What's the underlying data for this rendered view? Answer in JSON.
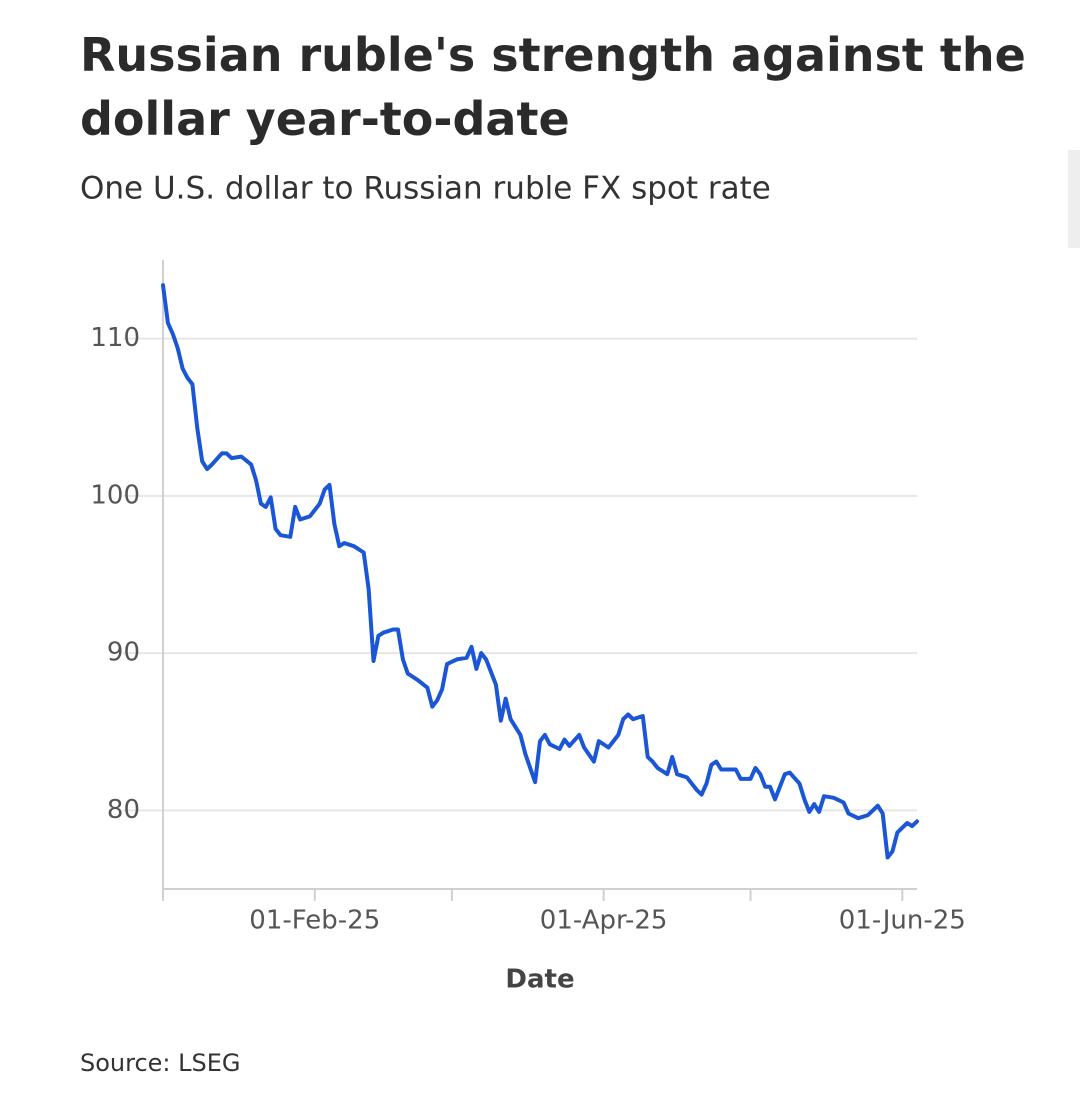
{
  "chart_data": {
    "type": "line",
    "title": "Russian ruble's strength against the dollar year-to-date",
    "subtitle": "One U.S. dollar to Russian ruble FX spot rate",
    "x_label": "Date",
    "source": "Source: LSEG",
    "grid": true,
    "series": [
      {
        "color": "#1a56d6",
        "x": [
          "2025-01-01",
          "2025-01-02",
          "2025-01-03",
          "2025-01-04",
          "2025-01-05",
          "2025-01-06",
          "2025-01-07",
          "2025-01-08",
          "2025-01-09",
          "2025-01-10",
          "2025-01-11",
          "2025-01-13",
          "2025-01-14",
          "2025-01-15",
          "2025-01-17",
          "2025-01-19",
          "2025-01-20",
          "2025-01-21",
          "2025-01-22",
          "2025-01-23",
          "2025-01-24",
          "2025-01-25",
          "2025-01-27",
          "2025-01-28",
          "2025-01-29",
          "2025-01-31",
          "2025-02-02",
          "2025-02-03",
          "2025-02-04",
          "2025-02-05",
          "2025-02-06",
          "2025-02-07",
          "2025-02-09",
          "2025-02-11",
          "2025-02-12",
          "2025-02-13",
          "2025-02-14",
          "2025-02-15",
          "2025-02-17",
          "2025-02-18",
          "2025-02-19",
          "2025-02-20",
          "2025-02-22",
          "2025-02-24",
          "2025-02-25",
          "2025-02-26",
          "2025-02-27",
          "2025-02-28",
          "2025-03-02",
          "2025-03-04",
          "2025-03-05",
          "2025-03-06",
          "2025-03-07",
          "2025-03-08",
          "2025-03-10",
          "2025-03-11",
          "2025-03-12",
          "2025-03-13",
          "2025-03-15",
          "2025-03-16",
          "2025-03-18",
          "2025-03-19",
          "2025-03-20",
          "2025-03-21",
          "2025-03-23",
          "2025-03-24",
          "2025-03-25",
          "2025-03-27",
          "2025-03-28",
          "2025-03-30",
          "2025-03-31",
          "2025-04-02",
          "2025-04-04",
          "2025-04-05",
          "2025-04-06",
          "2025-04-07",
          "2025-04-09",
          "2025-04-10",
          "2025-04-11",
          "2025-04-12",
          "2025-04-14",
          "2025-04-15",
          "2025-04-16",
          "2025-04-18",
          "2025-04-20",
          "2025-04-21",
          "2025-04-22",
          "2025-04-23",
          "2025-04-24",
          "2025-04-25",
          "2025-04-28",
          "2025-04-29",
          "2025-05-01",
          "2025-05-02",
          "2025-05-03",
          "2025-05-04",
          "2025-05-05",
          "2025-05-06",
          "2025-05-08",
          "2025-05-09",
          "2025-05-11",
          "2025-05-12",
          "2025-05-13",
          "2025-05-14",
          "2025-05-15",
          "2025-05-16",
          "2025-05-18",
          "2025-05-20",
          "2025-05-21",
          "2025-05-23",
          "2025-05-25",
          "2025-05-27",
          "2025-05-28",
          "2025-05-29",
          "2025-05-30",
          "2025-05-31",
          "2025-06-02",
          "2025-06-03",
          "2025-06-04"
        ],
        "values": [
          113.4,
          111.0,
          110.3,
          109.4,
          108.1,
          107.5,
          107.1,
          104.3,
          102.2,
          101.7,
          102.0,
          102.7,
          102.7,
          102.4,
          102.5,
          102.0,
          101.0,
          99.5,
          99.3,
          99.9,
          97.9,
          97.5,
          97.4,
          99.3,
          98.5,
          98.7,
          99.5,
          100.4,
          100.7,
          98.2,
          96.8,
          97.0,
          96.8,
          96.4,
          94.1,
          89.5,
          91.1,
          91.3,
          91.5,
          91.5,
          89.6,
          88.7,
          88.3,
          87.8,
          86.6,
          87.0,
          87.7,
          89.3,
          89.6,
          89.7,
          90.4,
          89.0,
          90.0,
          89.6,
          88.0,
          85.7,
          87.1,
          85.8,
          84.8,
          83.6,
          81.8,
          84.4,
          84.8,
          84.2,
          83.9,
          84.5,
          84.1,
          84.8,
          84.0,
          83.1,
          84.4,
          84.0,
          84.8,
          85.8,
          86.1,
          85.8,
          86.0,
          83.4,
          83.1,
          82.7,
          82.3,
          83.4,
          82.3,
          82.1,
          81.3,
          81.0,
          81.7,
          82.9,
          83.1,
          82.6,
          82.6,
          82.0,
          82.0,
          82.7,
          82.3,
          81.5,
          81.5,
          80.7,
          82.3,
          82.4,
          81.7,
          80.7,
          79.9,
          80.4,
          79.9,
          80.9,
          80.8,
          80.5,
          79.8,
          79.5,
          79.7,
          80.3,
          79.8,
          77.0,
          77.4,
          78.6,
          79.2,
          79.0,
          79.3
        ]
      }
    ],
    "xlim": [
      "2025-01-01",
      "2025-06-04"
    ],
    "xticks": [
      {
        "value": "2025-02-01",
        "label": "01-Feb-25"
      },
      {
        "value": "2025-04-01",
        "label": "01-Apr-25"
      },
      {
        "value": "2025-06-01",
        "label": "01-Jun-25"
      }
    ],
    "x_minor_ticks": [
      "2025-01-01",
      "2025-03-01",
      "2025-05-01"
    ],
    "ylim": [
      75,
      115
    ],
    "yticks": [
      80,
      90,
      100,
      110
    ]
  }
}
